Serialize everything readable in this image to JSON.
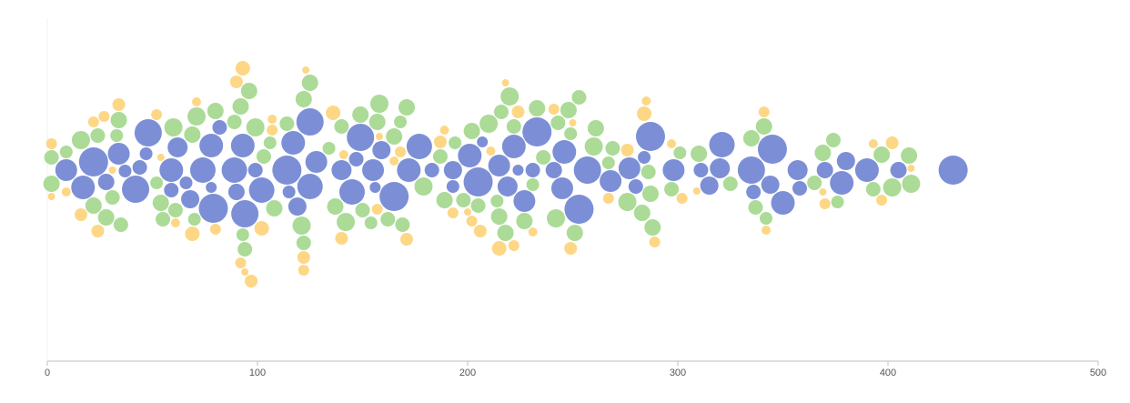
{
  "chart_data": {
    "type": "beeswarm",
    "xlim": [
      0,
      500
    ],
    "xticks": [
      0,
      100,
      200,
      300,
      400,
      500
    ],
    "series": [
      {
        "color": "#7589d4",
        "x": [
          9,
          17,
          22,
          28,
          34,
          37,
          42,
          44,
          47,
          48,
          59,
          59,
          62,
          66,
          68,
          74,
          78,
          78,
          79,
          82,
          89,
          90,
          93,
          94,
          99,
          102,
          114,
          115,
          117,
          119,
          125,
          125,
          128,
          140,
          145,
          147,
          149,
          155,
          156,
          159,
          165,
          172,
          177,
          183,
          193,
          193,
          201,
          205,
          207,
          215,
          219,
          222,
          224,
          227,
          231,
          233,
          241,
          245,
          246,
          253,
          257,
          268,
          277,
          280,
          284,
          287,
          298,
          311,
          315,
          320,
          321,
          335,
          336,
          344,
          345,
          350,
          357,
          358,
          370,
          378,
          380,
          390,
          405,
          431
        ],
        "sizes": [
          12,
          13,
          16,
          9,
          12,
          7,
          15,
          8,
          7,
          15,
          13,
          8,
          11,
          7,
          10,
          14,
          13,
          6,
          16,
          8,
          14,
          9,
          13,
          15,
          8,
          14,
          16,
          7,
          13,
          10,
          15,
          14,
          12,
          11,
          14,
          8,
          15,
          12,
          6,
          10,
          16,
          13,
          14,
          8,
          10,
          7,
          13,
          16,
          6,
          12,
          11,
          13,
          6,
          12,
          8,
          16,
          9,
          12,
          13,
          16,
          15,
          12,
          12,
          8,
          7,
          16,
          12,
          8,
          10,
          11,
          14,
          15,
          8,
          10,
          16,
          13,
          11,
          8,
          9,
          13,
          10,
          13,
          9,
          16
        ]
      },
      {
        "color": "#a7d991",
        "x": [
          2,
          2,
          9,
          16,
          22,
          24,
          28,
          31,
          33,
          34,
          35,
          52,
          54,
          55,
          60,
          61,
          69,
          70,
          71,
          80,
          89,
          92,
          93,
          94,
          96,
          99,
          103,
          106,
          108,
          114,
          121,
          122,
          122,
          125,
          134,
          137,
          140,
          142,
          149,
          150,
          154,
          157,
          158,
          162,
          165,
          168,
          169,
          171,
          179,
          187,
          189,
          194,
          198,
          202,
          205,
          210,
          214,
          215,
          216,
          218,
          220,
          222,
          227,
          231,
          233,
          236,
          242,
          243,
          248,
          249,
          251,
          253,
          260,
          261,
          267,
          269,
          276,
          283,
          286,
          287,
          288,
          297,
          301,
          310,
          325,
          335,
          337,
          341,
          342,
          365,
          369,
          374,
          376,
          393,
          397,
          402,
          410,
          411
        ],
        "sizes": [
          9,
          8,
          7,
          10,
          9,
          8,
          9,
          8,
          7,
          9,
          8,
          7,
          9,
          8,
          10,
          8,
          9,
          7,
          10,
          9,
          8,
          9,
          7,
          8,
          9,
          10,
          8,
          7,
          9,
          8,
          10,
          9,
          8,
          9,
          7,
          9,
          8,
          10,
          9,
          8,
          7,
          9,
          10,
          8,
          9,
          7,
          8,
          9,
          10,
          8,
          9,
          7,
          8,
          9,
          8,
          10,
          7,
          9,
          8,
          9,
          10,
          8,
          9,
          7,
          9,
          8,
          10,
          8,
          9,
          7,
          9,
          8,
          10,
          9,
          7,
          8,
          10,
          9,
          8,
          9,
          9,
          8,
          7,
          9,
          8,
          9,
          8,
          9,
          7,
          8,
          9,
          8,
          7,
          8,
          9,
          10,
          9,
          10
        ]
      },
      {
        "color": "#fdd57e",
        "x": [
          2,
          2,
          9,
          16,
          22,
          24,
          27,
          31,
          34,
          52,
          54,
          61,
          69,
          71,
          80,
          90,
          92,
          93,
          94,
          97,
          102,
          107,
          107,
          122,
          122,
          123,
          136,
          140,
          141,
          157,
          158,
          165,
          168,
          171,
          187,
          189,
          193,
          200,
          202,
          206,
          211,
          215,
          218,
          222,
          224,
          231,
          241,
          249,
          250,
          267,
          276,
          284,
          285,
          289,
          297,
          302,
          309,
          341,
          342,
          369,
          370,
          393,
          397,
          402,
          411
        ],
        "sizes": [
          6,
          4,
          5,
          7,
          6,
          7,
          6,
          4,
          7,
          6,
          4,
          5,
          8,
          5,
          6,
          7,
          6,
          8,
          4,
          7,
          8,
          6,
          5,
          7,
          6,
          4,
          8,
          7,
          5,
          6,
          4,
          5,
          6,
          7,
          7,
          5,
          6,
          4,
          6,
          7,
          5,
          8,
          4,
          6,
          7,
          5,
          6,
          7,
          4,
          6,
          7,
          8,
          5,
          6,
          5,
          6,
          4,
          6,
          5,
          4,
          6,
          5,
          6,
          7,
          4
        ]
      }
    ]
  }
}
